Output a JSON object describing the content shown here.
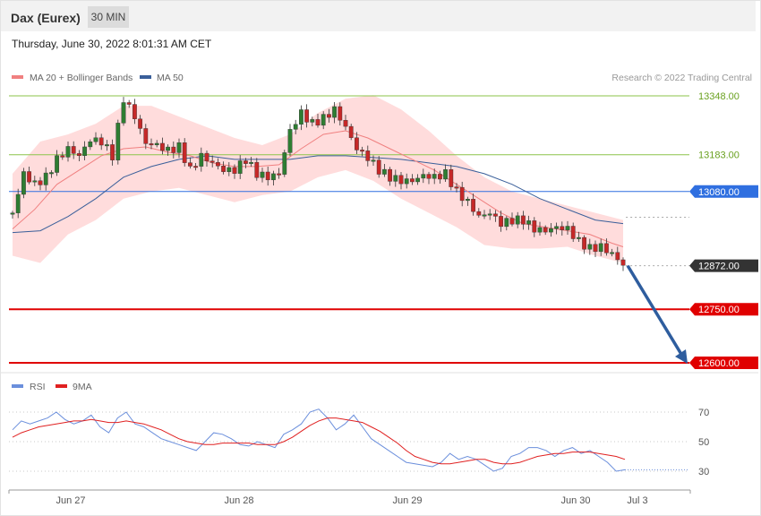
{
  "header": {
    "title": "Dax (Eurex)",
    "timeframe": "30 MIN",
    "datetime": "Thursday, June 30, 2022 8:01:31 AM CET"
  },
  "colors": {
    "bollinger": "#ffd6d6",
    "ma20": "#f08080",
    "ma50": "#3a5f9a",
    "bull": "#2e7d32",
    "bear": "#c62828",
    "green_level": "#8bc34a",
    "blue_level": "#2f6fe0",
    "red_level": "#e00000",
    "current": "#333333",
    "rsi": "#6b8fdc",
    "rsi_ma": "#e02020",
    "arrow": "#2e5d9e"
  },
  "legend": {
    "ma20_label": "MA 20 + Bollinger Bands",
    "ma50_label": "MA 50",
    "credit": "Research © 2022 Trading Central"
  },
  "rsi_legend": {
    "rsi_label": "RSI",
    "ma_label": "9MA"
  },
  "chart_data": [
    {
      "type": "candlestick",
      "title": "Dax (Eurex)",
      "ylim": [
        12594,
        13404
      ],
      "x_ticks": [
        "Jun 27",
        "Jun 28",
        "Jun 29",
        "Jun 30",
        "Jul 3"
      ],
      "levels": [
        {
          "label": "13348.00",
          "value": 13348,
          "kind": "resistance"
        },
        {
          "label": "13183.00",
          "value": 13183,
          "kind": "resistance"
        },
        {
          "label": "13080.00",
          "value": 13080,
          "kind": "pivot"
        },
        {
          "label": "12872.00",
          "value": 12872,
          "kind": "current"
        },
        {
          "label": "12750.00",
          "value": 12750,
          "kind": "target"
        },
        {
          "label": "12600.00",
          "value": 12600,
          "kind": "target"
        }
      ],
      "close_path": [
        [
          0,
          13020
        ],
        [
          4,
          13130
        ],
        [
          8,
          13100
        ],
        [
          12,
          13120
        ],
        [
          16,
          13170
        ],
        [
          20,
          13200
        ],
        [
          24,
          13180
        ],
        [
          28,
          13225
        ],
        [
          32,
          13220
        ],
        [
          36,
          13180
        ],
        [
          40,
          13340
        ],
        [
          44,
          13290
        ],
        [
          48,
          13215
        ],
        [
          52,
          13210
        ],
        [
          56,
          13195
        ],
        [
          60,
          13205
        ],
        [
          64,
          13140
        ],
        [
          68,
          13180
        ],
        [
          72,
          13160
        ],
        [
          76,
          13140
        ],
        [
          80,
          13140
        ],
        [
          84,
          13170
        ],
        [
          88,
          13130
        ],
        [
          92,
          13120
        ],
        [
          96,
          13130
        ],
        [
          100,
          13250
        ],
        [
          104,
          13300
        ],
        [
          108,
          13270
        ],
        [
          112,
          13285
        ],
        [
          116,
          13310
        ],
        [
          120,
          13260
        ],
        [
          124,
          13200
        ],
        [
          128,
          13175
        ],
        [
          132,
          13140
        ],
        [
          136,
          13120
        ],
        [
          140,
          13110
        ],
        [
          144,
          13110
        ],
        [
          148,
          13125
        ],
        [
          152,
          13120
        ],
        [
          156,
          13130
        ],
        [
          160,
          13080
        ],
        [
          164,
          13050
        ],
        [
          168,
          13010
        ],
        [
          172,
          13020
        ],
        [
          176,
          12990
        ],
        [
          180,
          13000
        ],
        [
          184,
          13000
        ],
        [
          188,
          12975
        ],
        [
          192,
          12970
        ],
        [
          196,
          12980
        ],
        [
          200,
          12975
        ],
        [
          204,
          12940
        ],
        [
          208,
          12920
        ],
        [
          212,
          12925
        ],
        [
          216,
          12905
        ],
        [
          220,
          12875
        ]
      ],
      "ma20_path": [
        [
          0,
          12975
        ],
        [
          8,
          13030
        ],
        [
          16,
          13100
        ],
        [
          24,
          13140
        ],
        [
          32,
          13180
        ],
        [
          40,
          13200
        ],
        [
          48,
          13205
        ],
        [
          56,
          13190
        ],
        [
          64,
          13180
        ],
        [
          72,
          13160
        ],
        [
          80,
          13150
        ],
        [
          88,
          13150
        ],
        [
          96,
          13155
        ],
        [
          104,
          13200
        ],
        [
          112,
          13240
        ],
        [
          120,
          13250
        ],
        [
          128,
          13230
        ],
        [
          136,
          13200
        ],
        [
          144,
          13170
        ],
        [
          152,
          13140
        ],
        [
          160,
          13100
        ],
        [
          168,
          13060
        ],
        [
          176,
          13020
        ],
        [
          184,
          12990
        ],
        [
          192,
          12980
        ],
        [
          200,
          12970
        ],
        [
          208,
          12960
        ],
        [
          216,
          12935
        ],
        [
          220,
          12925
        ]
      ],
      "ma50_path": [
        [
          0,
          12965
        ],
        [
          10,
          12970
        ],
        [
          20,
          13010
        ],
        [
          30,
          13060
        ],
        [
          40,
          13120
        ],
        [
          50,
          13150
        ],
        [
          60,
          13170
        ],
        [
          70,
          13180
        ],
        [
          80,
          13170
        ],
        [
          90,
          13170
        ],
        [
          100,
          13170
        ],
        [
          110,
          13180
        ],
        [
          120,
          13180
        ],
        [
          130,
          13175
        ],
        [
          140,
          13170
        ],
        [
          150,
          13160
        ],
        [
          160,
          13150
        ],
        [
          170,
          13130
        ],
        [
          180,
          13100
        ],
        [
          190,
          13060
        ],
        [
          200,
          13030
        ],
        [
          210,
          13000
        ],
        [
          220,
          12990
        ]
      ],
      "boll_upper": [
        [
          0,
          13130
        ],
        [
          10,
          13220
        ],
        [
          20,
          13240
        ],
        [
          30,
          13270
        ],
        [
          40,
          13320
        ],
        [
          50,
          13320
        ],
        [
          60,
          13290
        ],
        [
          70,
          13260
        ],
        [
          80,
          13230
        ],
        [
          90,
          13210
        ],
        [
          100,
          13240
        ],
        [
          110,
          13300
        ],
        [
          120,
          13340
        ],
        [
          130,
          13350
        ],
        [
          140,
          13310
        ],
        [
          150,
          13250
        ],
        [
          160,
          13180
        ],
        [
          170,
          13120
        ],
        [
          180,
          13080
        ],
        [
          190,
          13060
        ],
        [
          200,
          13040
        ],
        [
          210,
          13020
        ],
        [
          220,
          13000
        ]
      ],
      "boll_lower": [
        [
          0,
          12900
        ],
        [
          10,
          12880
        ],
        [
          20,
          12960
        ],
        [
          30,
          13000
        ],
        [
          40,
          13060
        ],
        [
          50,
          13080
        ],
        [
          60,
          13090
        ],
        [
          70,
          13070
        ],
        [
          80,
          13050
        ],
        [
          90,
          13070
        ],
        [
          100,
          13080
        ],
        [
          110,
          13120
        ],
        [
          120,
          13140
        ],
        [
          130,
          13110
        ],
        [
          140,
          13060
        ],
        [
          150,
          13020
        ],
        [
          160,
          12980
        ],
        [
          170,
          12930
        ],
        [
          180,
          12920
        ],
        [
          190,
          12920
        ],
        [
          200,
          12925
        ],
        [
          210,
          12900
        ],
        [
          220,
          12880
        ]
      ],
      "forecast": {
        "from": 12872,
        "to": 12600
      }
    },
    {
      "type": "line",
      "title": "RSI",
      "ylim": [
        20,
        80
      ],
      "y_ticks": [
        30,
        50,
        70
      ],
      "series": [
        {
          "name": "RSI",
          "values": [
            58,
            64,
            62,
            64,
            66,
            70,
            65,
            62,
            64,
            68,
            60,
            56,
            66,
            70,
            62,
            60,
            56,
            52,
            50,
            48,
            46,
            44,
            50,
            56,
            55,
            52,
            48,
            47,
            50,
            48,
            46,
            55,
            58,
            62,
            70,
            72,
            66,
            58,
            62,
            68,
            60,
            52,
            48,
            44,
            40,
            36,
            35,
            34,
            33,
            36,
            42,
            38,
            40,
            38,
            34,
            30,
            32,
            40,
            42,
            46,
            46,
            44,
            40,
            44,
            46,
            42,
            44,
            40,
            36,
            30,
            31
          ]
        },
        {
          "name": "9MA",
          "values": [
            53,
            56,
            58,
            60,
            61,
            62,
            63,
            64,
            64,
            65,
            64,
            63,
            63,
            64,
            63,
            62,
            60,
            58,
            55,
            52,
            50,
            49,
            48,
            48,
            49,
            49,
            49,
            49,
            48,
            48,
            48,
            50,
            53,
            57,
            61,
            64,
            66,
            66,
            65,
            64,
            63,
            60,
            57,
            53,
            49,
            44,
            40,
            38,
            36,
            35,
            35,
            36,
            37,
            38,
            38,
            36,
            35,
            35,
            36,
            38,
            40,
            41,
            42,
            42,
            43,
            43,
            43,
            42,
            41,
            40,
            38
          ]
        }
      ]
    }
  ]
}
